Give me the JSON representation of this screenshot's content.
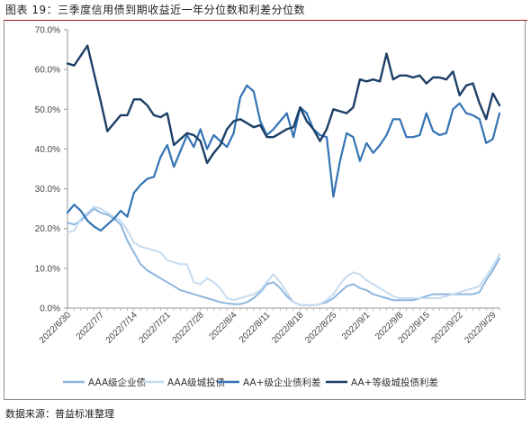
{
  "header": {
    "title": "图表 19：三季度信用债到期收益近一年分位数和利差分位数"
  },
  "footer": {
    "source": "数据来源：普益标准整理"
  },
  "chart_data": {
    "type": "line",
    "title": "图表 19：三季度信用债到期收益近一年分位数和利差分位数",
    "xlabel": "",
    "ylabel": "",
    "y_format": "percent_1dp",
    "ylim": [
      0,
      70
    ],
    "yticks": [
      0,
      10,
      20,
      30,
      40,
      50,
      60,
      70
    ],
    "ytick_labels": [
      "0.0%",
      "10.0%",
      "20.0%",
      "30.0%",
      "40.0%",
      "50.0%",
      "60.0%",
      "70.0%"
    ],
    "grid": false,
    "legend_position": "bottom",
    "categories": [
      "2022/6/30",
      "2022/7/1",
      "2022/7/4",
      "2022/7/5",
      "2022/7/6",
      "2022/7/7",
      "2022/7/8",
      "2022/7/11",
      "2022/7/12",
      "2022/7/13",
      "2022/7/14",
      "2022/7/15",
      "2022/7/18",
      "2022/7/19",
      "2022/7/20",
      "2022/7/21",
      "2022/7/22",
      "2022/7/25",
      "2022/7/26",
      "2022/7/27",
      "2022/7/28",
      "2022/7/29",
      "2022/8/1",
      "2022/8/2",
      "2022/8/3",
      "2022/8/4",
      "2022/8/5",
      "2022/8/8",
      "2022/8/9",
      "2022/8/10",
      "2022/8/11",
      "2022/8/12",
      "2022/8/15",
      "2022/8/16",
      "2022/8/17",
      "2022/8/18",
      "2022/8/19",
      "2022/8/22",
      "2022/8/23",
      "2022/8/24",
      "2022/8/25",
      "2022/8/26",
      "2022/8/29",
      "2022/8/30",
      "2022/8/31",
      "2022/9/1",
      "2022/9/2",
      "2022/9/5",
      "2022/9/6",
      "2022/9/7",
      "2022/9/8",
      "2022/9/9",
      "2022/9/13",
      "2022/9/14",
      "2022/9/15",
      "2022/9/16",
      "2022/9/19",
      "2022/9/20",
      "2022/9/21",
      "2022/9/22",
      "2022/9/23",
      "2022/9/26",
      "2022/9/27",
      "2022/9/28",
      "2022/9/29",
      "2022/9/30"
    ],
    "xtick_labels": [
      "2022/6/30",
      "2022/7/7",
      "2022/7/14",
      "2022/7/21",
      "2022/7/28",
      "2022/8/4",
      "2022/8/11",
      "2022/8/18",
      "2022/8/25",
      "2022/9/1",
      "2022/9/8",
      "2022/9/15",
      "2022/9/22",
      "2022/9/29"
    ],
    "series": [
      {
        "name": "AAA级企业债",
        "color": "#8db6df",
        "width": 2,
        "values": [
          21.5,
          21.0,
          22.0,
          23.5,
          25.0,
          24.0,
          23.5,
          22.5,
          21.0,
          17.0,
          14.0,
          11.0,
          9.5,
          8.5,
          7.5,
          6.5,
          5.5,
          4.5,
          4.0,
          3.5,
          3.0,
          2.5,
          2.0,
          1.5,
          1.2,
          1.0,
          1.0,
          1.5,
          2.5,
          4.0,
          6.0,
          6.5,
          5.0,
          3.0,
          1.5,
          0.8,
          0.7,
          0.7,
          1.0,
          1.5,
          2.5,
          4.0,
          5.5,
          6.0,
          5.0,
          4.5,
          3.5,
          3.0,
          2.5,
          2.0,
          2.0,
          2.0,
          2.0,
          2.5,
          3.0,
          3.5,
          3.5,
          3.5,
          3.5,
          3.5,
          3.5,
          3.5,
          4.0,
          7.0,
          9.5,
          12.5
        ]
      },
      {
        "name": "AAA级城投债",
        "color": "#c5dbef",
        "width": 2,
        "values": [
          19.0,
          19.5,
          22.5,
          24.0,
          25.5,
          25.0,
          24.0,
          23.0,
          22.0,
          19.5,
          16.5,
          15.5,
          15.0,
          14.5,
          14.0,
          12.0,
          11.5,
          11.0,
          11.0,
          6.5,
          6.0,
          7.5,
          6.5,
          5.0,
          2.5,
          2.0,
          2.5,
          3.0,
          3.5,
          4.5,
          6.5,
          8.5,
          6.5,
          4.0,
          1.5,
          0.7,
          0.7,
          0.7,
          1.0,
          2.0,
          3.5,
          6.0,
          8.0,
          9.0,
          8.5,
          7.0,
          6.0,
          5.0,
          4.0,
          3.0,
          2.5,
          2.5,
          2.5,
          2.5,
          2.5,
          2.5,
          2.5,
          3.0,
          3.5,
          4.0,
          4.5,
          5.0,
          5.5,
          8.0,
          10.5,
          13.5
        ]
      },
      {
        "name": "AA+级企业债利差",
        "color": "#3473b4",
        "width": 2.2,
        "values": [
          24.0,
          26.0,
          24.5,
          22.0,
          20.5,
          19.5,
          21.0,
          22.5,
          24.5,
          23.0,
          29.0,
          31.0,
          32.5,
          33.0,
          38.0,
          41.0,
          35.5,
          39.5,
          43.5,
          40.5,
          45.0,
          40.0,
          43.5,
          42.0,
          40.5,
          44.0,
          53.0,
          56.0,
          54.5,
          47.0,
          43.5,
          45.0,
          47.0,
          49.0,
          43.0,
          50.5,
          49.0,
          45.0,
          43.5,
          43.0,
          28.0,
          37.0,
          44.0,
          43.0,
          37.0,
          41.5,
          39.0,
          41.0,
          43.5,
          47.5,
          47.5,
          43.0,
          43.0,
          43.5,
          49.0,
          44.5,
          43.5,
          44.0,
          50.0,
          51.5,
          49.0,
          48.5,
          47.5,
          41.5,
          42.5,
          49.0
        ]
      },
      {
        "name": "AA+等级城投债利差",
        "color": "#1d3f66",
        "width": 2.4,
        "values": [
          61.5,
          61.0,
          63.5,
          66.0,
          59.0,
          52.0,
          44.5,
          46.5,
          48.5,
          48.5,
          52.5,
          52.5,
          51.0,
          48.5,
          48.0,
          49.0,
          41.0,
          42.5,
          44.0,
          43.5,
          42.0,
          36.5,
          39.0,
          41.0,
          45.0,
          47.0,
          47.5,
          46.5,
          45.5,
          46.0,
          43.0,
          43.0,
          44.0,
          45.0,
          45.5,
          50.5,
          47.0,
          45.0,
          42.0,
          45.0,
          50.0,
          49.5,
          49.0,
          50.5,
          57.5,
          57.0,
          57.5,
          57.0,
          64.0,
          57.5,
          58.5,
          58.5,
          58.0,
          58.5,
          56.5,
          58.0,
          58.0,
          57.5,
          59.5,
          53.5,
          56.0,
          56.5,
          51.5,
          47.5,
          54.0,
          51.0
        ]
      }
    ]
  }
}
